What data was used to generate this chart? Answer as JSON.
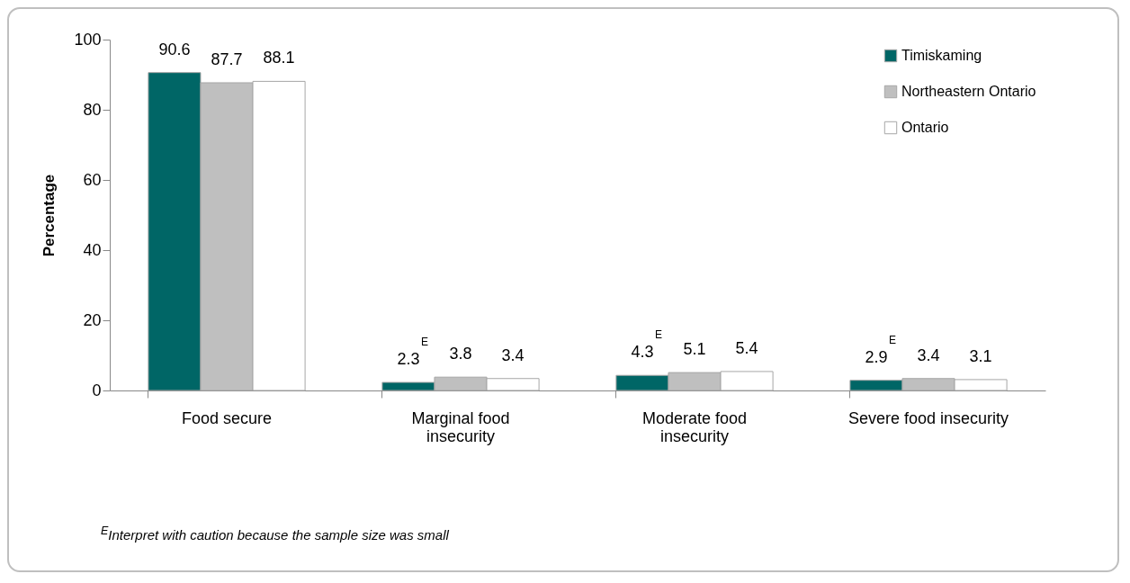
{
  "chart_data": {
    "type": "bar",
    "ylabel": "Percentage",
    "categories": [
      "Food secure",
      "Marginal food insecurity",
      "Moderate food insecurity",
      "Severe food insecurity"
    ],
    "series": [
      {
        "name": "Timiskaming",
        "color": "#006666",
        "values": [
          90.6,
          2.3,
          4.3,
          2.9
        ],
        "value_labels": [
          "90.6",
          "2.3$^{E}$",
          "4.3$^{E}$",
          "2.9$^{E}$"
        ]
      },
      {
        "name": "Northeastern Ontario",
        "color": "#bfbfbf",
        "values": [
          87.7,
          3.8,
          5.1,
          3.4
        ],
        "value_labels": [
          "87.7",
          "3.8",
          "5.1",
          "3.4"
        ]
      },
      {
        "name": "Ontario",
        "color": "#ffffff",
        "values": [
          88.1,
          3.4,
          5.4,
          3.1
        ],
        "value_labels": [
          "88.1",
          "3.4",
          "5.4",
          "3.1"
        ]
      }
    ],
    "ylim": [
      0,
      100
    ],
    "yticks": [
      0,
      20,
      40,
      60,
      80,
      100
    ],
    "grid": false,
    "legend": "top right",
    "annotations": [
      "$^{E}$Interpret with caution because the sample size was small"
    ]
  }
}
